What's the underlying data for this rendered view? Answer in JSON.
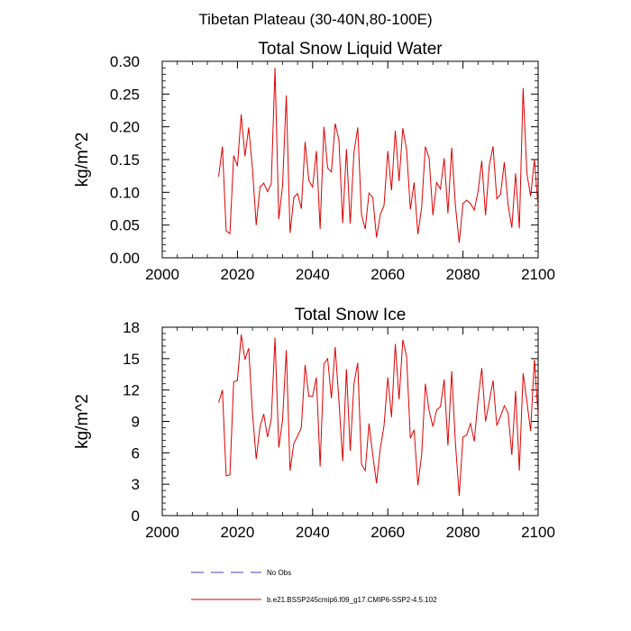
{
  "figure_title": "Tibetan Plateau (30-40N,80-100E)",
  "legend": [
    {
      "label": "No Obs",
      "color": "#4040c0",
      "style": "dashed"
    },
    {
      "label": "b.e21.BSSP245cmip6.f09_g17.CMIP6-SSP2-4.5.102",
      "color": "#e00000",
      "style": "solid"
    }
  ],
  "chart_data": [
    {
      "type": "line",
      "title": "Total Snow Liquid Water",
      "xlabel": "",
      "ylabel": "kg/m^2",
      "xlim": [
        2000,
        2100
      ],
      "ylim": [
        0,
        0.3
      ],
      "xticks": [
        2000,
        2020,
        2040,
        2060,
        2080,
        2100
      ],
      "yticks": [
        0,
        0.05,
        0.1,
        0.15,
        0.2,
        0.25,
        0.3
      ],
      "ytick_labels": [
        "0.00",
        "0.05",
        "0.10",
        "0.15",
        "0.20",
        "0.25",
        "0.30"
      ],
      "grid": false,
      "x_start": 2015,
      "series": [
        {
          "name": "b.e21.BSSP245cmip6.f09_g17.CMIP6-SSP2-4.5.102",
          "color": "#e00000",
          "values": [
            0.124,
            0.17,
            0.041,
            0.037,
            0.156,
            0.14,
            0.219,
            0.155,
            0.199,
            0.136,
            0.05,
            0.108,
            0.114,
            0.101,
            0.113,
            0.29,
            0.059,
            0.11,
            0.248,
            0.038,
            0.092,
            0.098,
            0.075,
            0.177,
            0.118,
            0.108,
            0.163,
            0.044,
            0.2,
            0.137,
            0.131,
            0.205,
            0.18,
            0.053,
            0.166,
            0.052,
            0.161,
            0.199,
            0.066,
            0.044,
            0.099,
            0.092,
            0.031,
            0.066,
            0.08,
            0.163,
            0.103,
            0.194,
            0.117,
            0.198,
            0.165,
            0.074,
            0.115,
            0.036,
            0.077,
            0.17,
            0.152,
            0.065,
            0.115,
            0.105,
            0.152,
            0.068,
            0.168,
            0.079,
            0.023,
            0.083,
            0.088,
            0.083,
            0.073,
            0.101,
            0.148,
            0.065,
            0.141,
            0.17,
            0.09,
            0.097,
            0.146,
            0.081,
            0.046,
            0.129,
            0.045,
            0.259,
            0.129,
            0.094,
            0.15,
            0.077
          ]
        }
      ]
    },
    {
      "type": "line",
      "title": "Total Snow Ice",
      "xlabel": "",
      "ylabel": "kg/m^2",
      "xlim": [
        2000,
        2100
      ],
      "ylim": [
        0,
        18
      ],
      "xticks": [
        2000,
        2020,
        2040,
        2060,
        2080,
        2100
      ],
      "yticks": [
        0,
        3,
        6,
        9,
        12,
        15,
        18
      ],
      "ytick_labels": [
        "0",
        "3",
        "6",
        "9",
        "12",
        "15",
        "18"
      ],
      "grid": false,
      "x_start": 2015,
      "series": [
        {
          "name": "b.e21.BSSP245cmip6.f09_g17.CMIP6-SSP2-4.5.102",
          "color": "#e00000",
          "values": [
            10.8,
            12.0,
            3.8,
            3.9,
            12.8,
            12.9,
            17.3,
            14.9,
            16.0,
            9.8,
            5.4,
            8.5,
            9.7,
            7.5,
            9.2,
            17.0,
            6.5,
            9.1,
            15.8,
            4.3,
            6.9,
            7.6,
            8.4,
            14.4,
            11.4,
            11.4,
            13.2,
            4.7,
            14.5,
            15.0,
            11.2,
            16.1,
            11.0,
            5.2,
            14.0,
            6.2,
            12.6,
            14.6,
            4.9,
            4.3,
            8.8,
            5.8,
            3.1,
            6.4,
            8.6,
            13.2,
            9.4,
            16.4,
            11.1,
            16.8,
            15.2,
            7.4,
            8.2,
            2.9,
            5.8,
            12.6,
            10.0,
            8.5,
            10.1,
            10.4,
            13.0,
            6.7,
            13.8,
            6.9,
            1.9,
            7.5,
            7.7,
            8.8,
            7.1,
            11.0,
            14.1,
            9.0,
            10.9,
            12.9,
            8.6,
            9.5,
            10.5,
            9.8,
            5.8,
            11.9,
            4.3,
            13.6,
            10.9,
            8.1,
            14.9,
            9.6
          ]
        }
      ]
    }
  ]
}
